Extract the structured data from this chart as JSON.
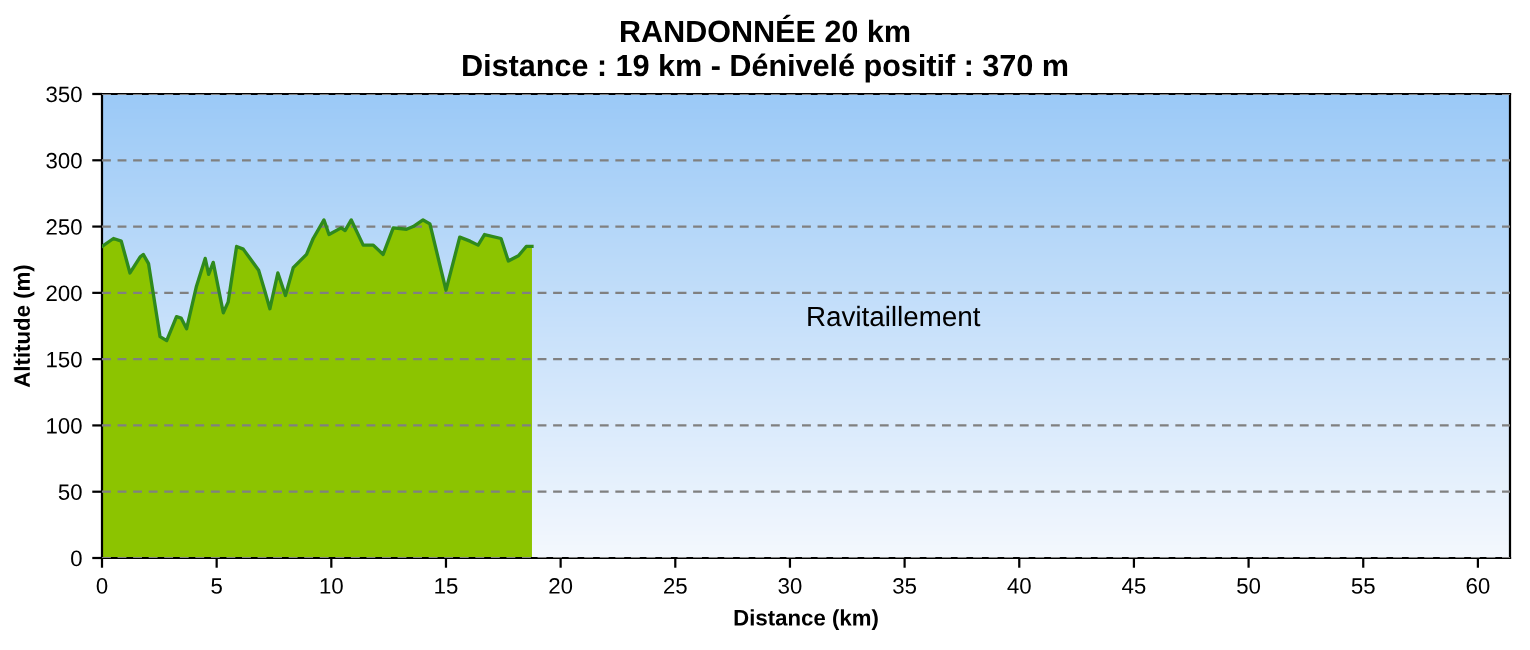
{
  "chart_data": {
    "type": "area",
    "title": "RANDONNÉE 20 km",
    "subtitle": "Distance : 19 km - Dénivelé positif : 370 m",
    "xlabel": "Distance (km)",
    "ylabel": "Altitude (m)",
    "x": [
      0,
      0.5,
      0.84,
      1.22,
      1.66,
      1.8,
      2.03,
      2.53,
      2.82,
      3.25,
      3.45,
      3.69,
      4.12,
      4.5,
      4.65,
      4.85,
      5.29,
      5.5,
      5.87,
      6.16,
      6.83,
      7.09,
      7.32,
      7.67,
      8.0,
      8.34,
      8.92,
      9.21,
      9.68,
      9.9,
      10.43,
      10.6,
      10.87,
      11.39,
      11.83,
      12.26,
      12.7,
      13.28,
      13.57,
      14.0,
      14.3,
      15.0,
      15.6,
      16.05,
      16.4,
      16.68,
      17.4,
      17.72,
      18.16,
      18.5,
      18.75
    ],
    "series": [
      {
        "color": "#8cc400",
        "values": [
          235,
          241,
          239,
          215,
          227,
          229,
          222,
          167,
          164,
          182,
          181,
          173,
          205,
          226,
          214,
          223,
          185,
          193,
          235,
          233,
          217,
          202,
          188,
          215,
          198,
          219,
          229,
          241,
          255,
          244,
          249,
          247,
          255,
          236,
          236,
          229,
          249,
          248,
          250,
          255,
          252,
          202,
          242,
          239,
          236,
          244,
          241,
          224,
          228,
          235,
          235
        ]
      }
    ],
    "xlim": [
      0,
      61.4
    ],
    "ylim": [
      0,
      350
    ],
    "xticks": [
      0,
      5,
      10,
      15,
      20,
      25,
      30,
      35,
      40,
      45,
      50,
      55,
      60
    ],
    "yticks": [
      0,
      50,
      100,
      150,
      200,
      250,
      300,
      350
    ],
    "grid": "y",
    "legend": false,
    "annotations": [
      "Ravitaillement"
    ]
  }
}
